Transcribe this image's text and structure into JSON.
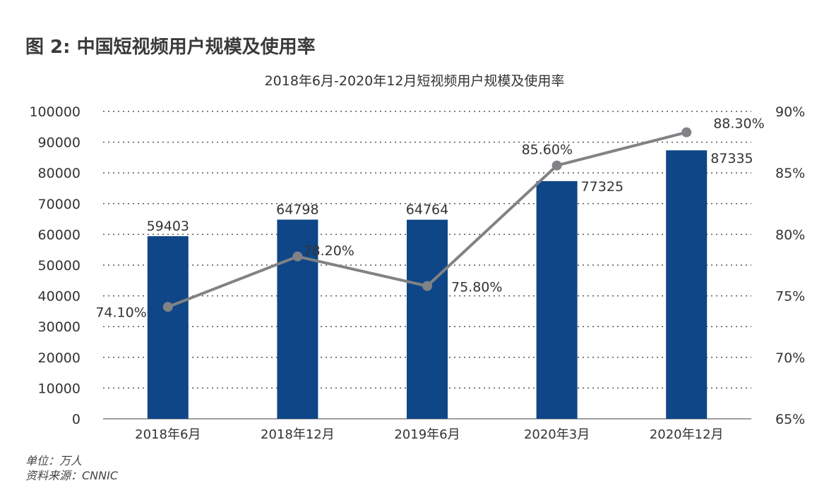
{
  "figure_title": "图 2: 中国短视频用户规模及使用率",
  "footnotes": {
    "unit": "单位：万人",
    "source": "资料来源：CNNIC"
  },
  "chart_data": {
    "type": "bar",
    "title": "2018年6月-2020年12月短视频用户规模及使用率",
    "categories": [
      "2018年6月",
      "2018年12月",
      "2019年6月",
      "2020年3月",
      "2020年12月"
    ],
    "series": [
      {
        "kind": "bar",
        "axis": "left",
        "values": [
          59403,
          64798,
          64764,
          77325,
          87335
        ],
        "labels": [
          "59403",
          "64798",
          "64764",
          "77325",
          "87335"
        ]
      },
      {
        "kind": "line",
        "axis": "right",
        "values": [
          74.1,
          78.2,
          75.8,
          85.6,
          88.3
        ],
        "labels": [
          "74.10%",
          "78.20%",
          "75.80%",
          "85.60%",
          "88.30%"
        ]
      }
    ],
    "y_left": {
      "range": [
        0,
        100000
      ],
      "ticks": [
        "0",
        "10000",
        "20000",
        "30000",
        "40000",
        "50000",
        "60000",
        "70000",
        "80000",
        "90000",
        "100000"
      ]
    },
    "y_right": {
      "range": [
        65,
        90
      ],
      "ticks": [
        "65%",
        "70%",
        "75%",
        "80%",
        "85%",
        "90%"
      ]
    },
    "grid": "dotted horizontal",
    "colors": {
      "bar": "#0f4687",
      "line": "#808285",
      "grid": "#555555"
    }
  }
}
